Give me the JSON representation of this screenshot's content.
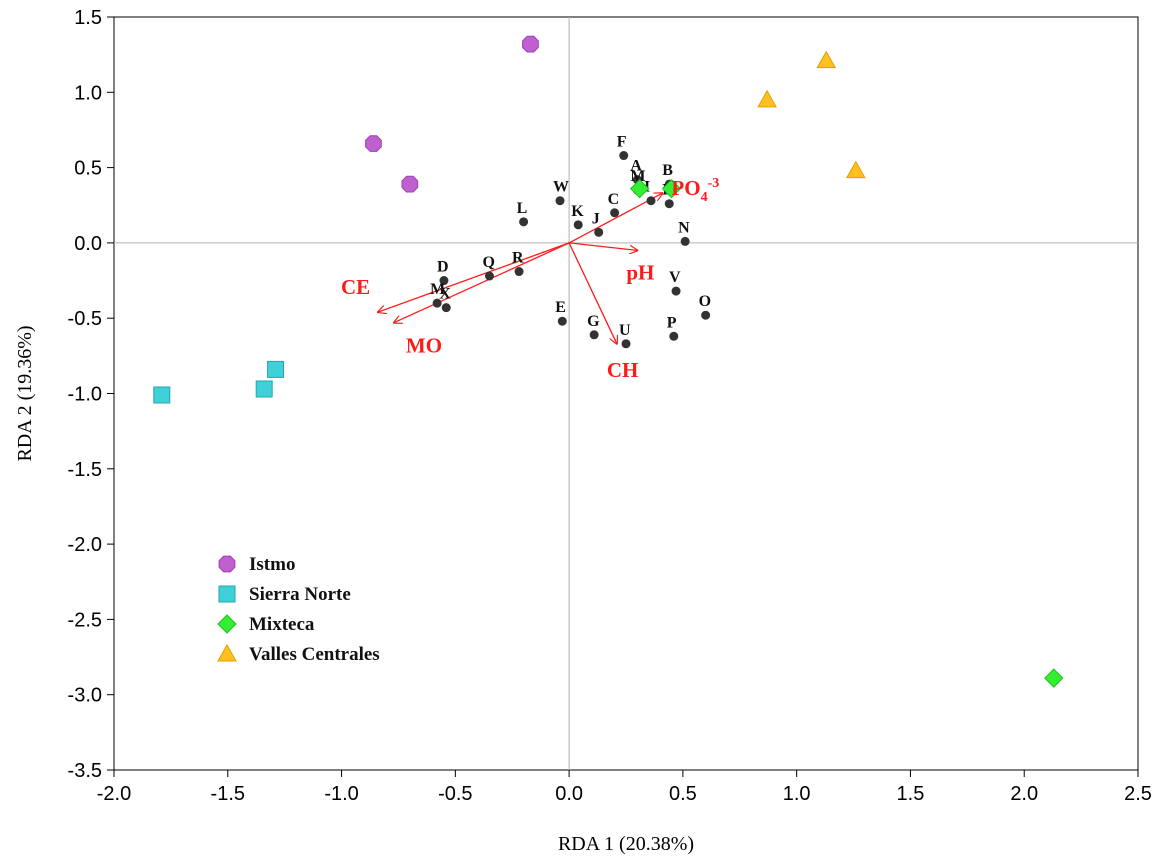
{
  "chart_data": {
    "type": "scatter",
    "xlabel": "RDA 1 (20.38%)",
    "ylabel": "RDA 2 (19.36%)",
    "xlim": [
      -2.0,
      2.5
    ],
    "ylim": [
      -3.5,
      1.5
    ],
    "x_ticks": [
      "-2.0",
      "-1.5",
      "-1.0",
      "-0.5",
      "0.0",
      "0.5",
      "1.0",
      "1.5",
      "2.0",
      "2.5"
    ],
    "y_ticks": [
      "1.5",
      "1.0",
      "0.5",
      "0.0",
      "-0.5",
      "-1.0",
      "-1.5",
      "-2.0",
      "-2.5",
      "-3.0",
      "-3.5"
    ],
    "grid": false,
    "zero_lines": true,
    "legend_position": "bottom-left",
    "series": [
      {
        "name": "Istmo",
        "marker": "octagon",
        "color": "#c060d0",
        "points": [
          [
            -0.17,
            1.32
          ],
          [
            -0.86,
            0.66
          ],
          [
            -0.7,
            0.39
          ]
        ]
      },
      {
        "name": "Sierra Norte",
        "marker": "square",
        "color": "#40d0d8",
        "points": [
          [
            -1.29,
            -0.84
          ],
          [
            -1.79,
            -1.01
          ],
          [
            -1.34,
            -0.97
          ]
        ]
      },
      {
        "name": "Mixteca",
        "marker": "diamond",
        "color": "#33ee33",
        "points": [
          [
            0.31,
            0.36
          ],
          [
            0.45,
            0.36
          ],
          [
            2.13,
            -2.89
          ]
        ]
      },
      {
        "name": "Valles Centrales",
        "marker": "triangle",
        "color": "#ffc020",
        "points": [
          [
            1.13,
            1.21
          ],
          [
            0.87,
            0.95
          ],
          [
            1.26,
            0.48
          ]
        ]
      }
    ],
    "sites": [
      {
        "label": "F",
        "x": 0.24,
        "y": 0.58
      },
      {
        "label": "A",
        "x": 0.3,
        "y": 0.42
      },
      {
        "label": "B",
        "x": 0.44,
        "y": 0.39
      },
      {
        "label": "M",
        "x": 0.3,
        "y": 0.35
      },
      {
        "label": "I",
        "x": 0.36,
        "y": 0.28
      },
      {
        "label": "H",
        "x": 0.44,
        "y": 0.26
      },
      {
        "label": "W",
        "x": -0.04,
        "y": 0.28
      },
      {
        "label": "C",
        "x": 0.2,
        "y": 0.2
      },
      {
        "label": "L",
        "x": -0.2,
        "y": 0.14
      },
      {
        "label": "K",
        "x": 0.04,
        "y": 0.12
      },
      {
        "label": "J",
        "x": 0.13,
        "y": 0.07
      },
      {
        "label": "N",
        "x": 0.51,
        "y": 0.01
      },
      {
        "label": "D",
        "x": -0.55,
        "y": -0.25
      },
      {
        "label": "Q",
        "x": -0.35,
        "y": -0.22
      },
      {
        "label": "R",
        "x": -0.22,
        "y": -0.19
      },
      {
        "label": "M",
        "x": -0.58,
        "y": -0.4
      },
      {
        "label": "X",
        "x": -0.54,
        "y": -0.43
      },
      {
        "label": "V",
        "x": 0.47,
        "y": -0.32
      },
      {
        "label": "O",
        "x": 0.6,
        "y": -0.48
      },
      {
        "label": "E",
        "x": -0.03,
        "y": -0.52
      },
      {
        "label": "G",
        "x": 0.11,
        "y": -0.61
      },
      {
        "label": "P",
        "x": 0.46,
        "y": -0.62
      },
      {
        "label": "U",
        "x": 0.25,
        "y": -0.67
      }
    ],
    "vectors": [
      {
        "label": "PO4-3",
        "label_main": "PO",
        "label_sub": "4",
        "label_sup": "-3",
        "x": 0.41,
        "y": 0.33
      },
      {
        "label": "pH",
        "x": 0.3,
        "y": -0.05
      },
      {
        "label": "CE",
        "x": -0.84,
        "y": -0.46
      },
      {
        "label": "MO",
        "x": -0.77,
        "y": -0.53
      },
      {
        "label": "CH",
        "x": 0.21,
        "y": -0.67
      }
    ],
    "vector_color": "#ff1a1a"
  }
}
